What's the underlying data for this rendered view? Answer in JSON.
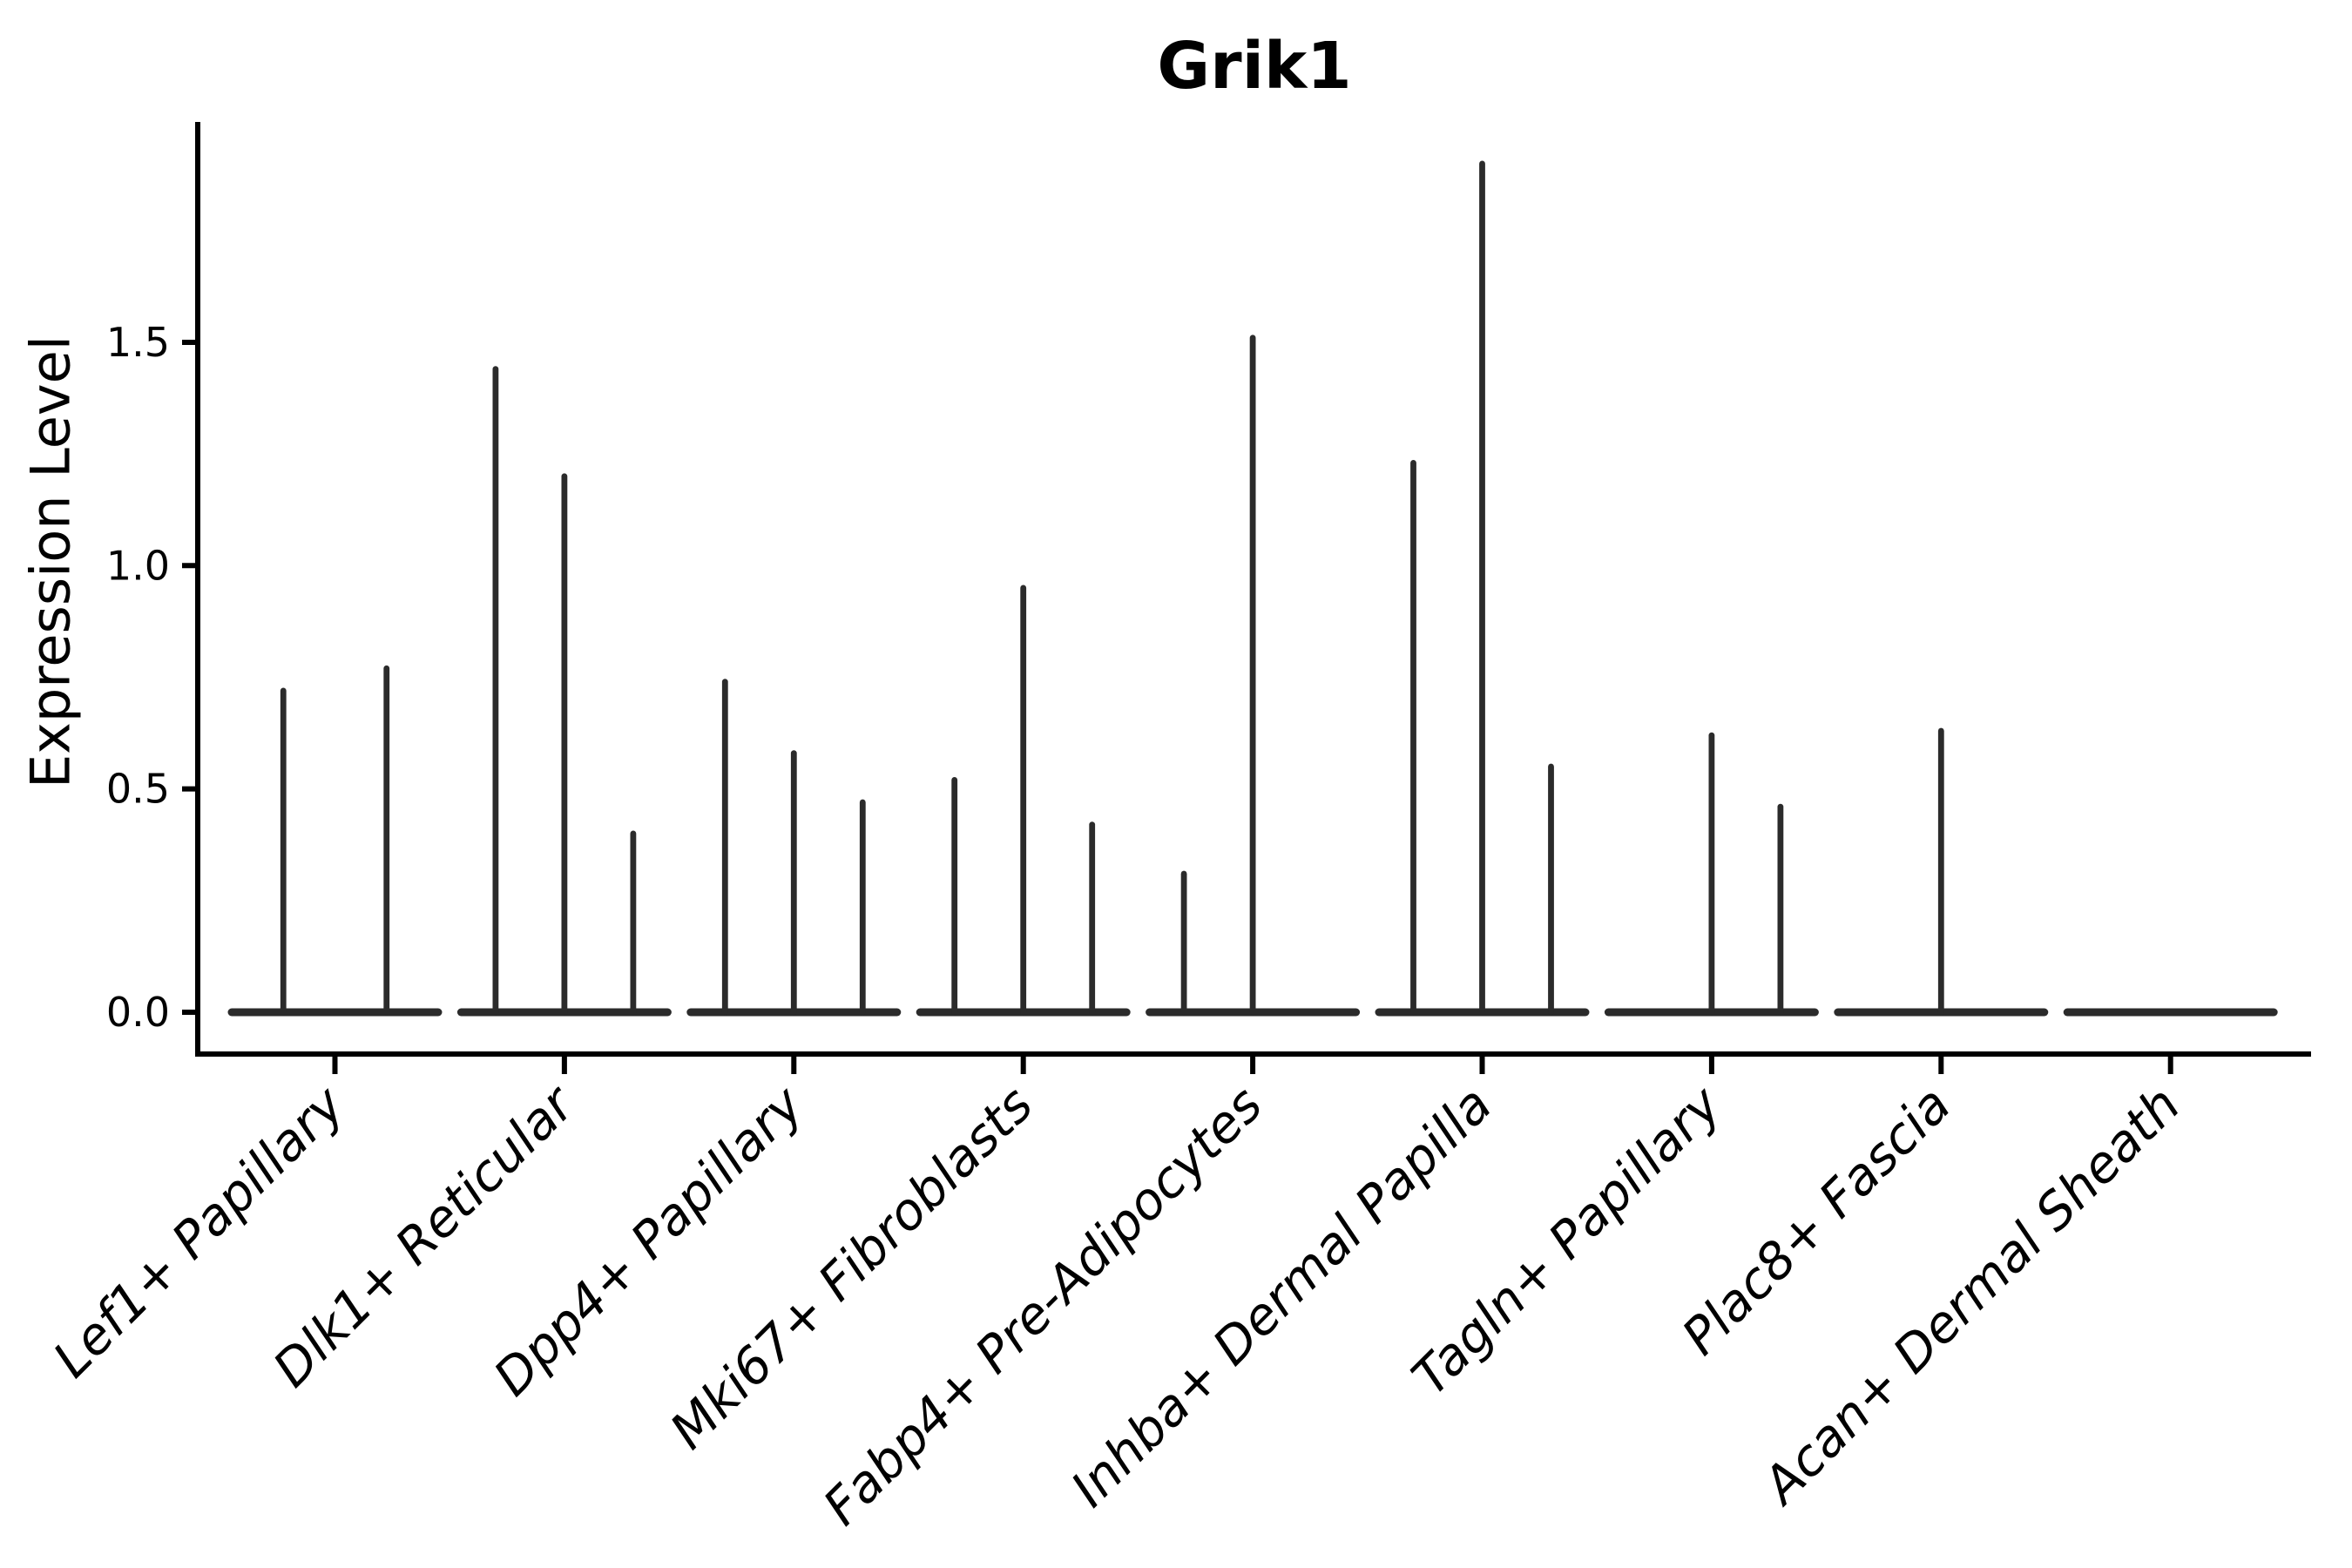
{
  "chart_data": {
    "type": "violin",
    "title": "Grik1",
    "xlabel": "",
    "ylabel": "Expression Level",
    "ytick_labels": [
      "0.0",
      "0.5",
      "1.0",
      "1.5"
    ],
    "ylim": [
      -0.09,
      2.0
    ],
    "grid": false,
    "legend_position": "none",
    "x_tick_label_rotation_deg": 45,
    "x_tick_label_style": "italic",
    "categories": [
      "Lef1+ Papillary",
      "Dlk1+ Reticular",
      "Dpp4+ Papillary",
      "Mki67+ Fibroblasts",
      "Fabp4+ Pre-Adipocytes",
      "Inhba+ Dermal Papilla",
      "Tagln+ Papillary",
      "Plac8+ Fascia",
      "Acan+ Dermal Sheath"
    ],
    "series": [
      {
        "category": "Lef1+ Papillary",
        "violin_max_expression": [
          0.72,
          0.77
        ]
      },
      {
        "category": "Dlk1+ Reticular",
        "violin_max_expression": [
          1.44,
          1.2,
          0.4
        ]
      },
      {
        "category": "Dpp4+ Papillary",
        "violin_max_expression": [
          0.74,
          0.58,
          0.47
        ]
      },
      {
        "category": "Mki67+ Fibroblasts",
        "violin_max_expression": [
          0.52,
          0.95,
          0.42
        ]
      },
      {
        "category": "Fabp4+ Pre-Adipocytes",
        "violin_max_expression": [
          0.31,
          1.51,
          0.0
        ]
      },
      {
        "category": "Inhba+ Dermal Papilla",
        "violin_max_expression": [
          1.23,
          1.9,
          0.55
        ]
      },
      {
        "category": "Tagln+ Papillary",
        "violin_max_expression": [
          0.0,
          0.62,
          0.46
        ]
      },
      {
        "category": "Plac8+ Fascia",
        "violin_max_expression": [
          0.0,
          0.63,
          0.0
        ]
      },
      {
        "category": "Acan+ Dermal Sheath",
        "violin_max_expression": [
          0.0,
          0.0,
          0.0
        ]
      }
    ],
    "colors": {
      "violin": "#2b2b2b",
      "axis": "#000000",
      "text": "#000000",
      "background": "#ffffff"
    }
  }
}
